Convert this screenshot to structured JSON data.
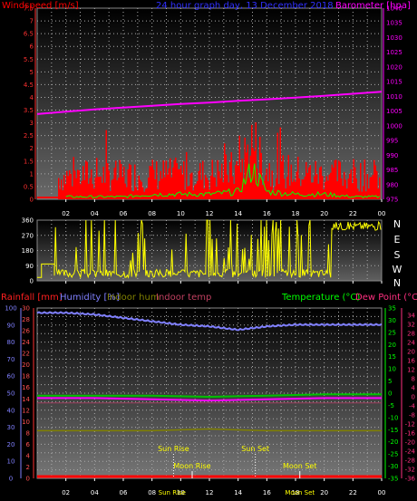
{
  "chart_data": [
    {
      "type": "bar",
      "panel": "wind-barometer",
      "title": "24 hour graph day, 13 December 2018",
      "ylabel_left": "Windspeed [m/s]",
      "ylabel_right": "Barometer [hpa]",
      "ylim_left": [
        0,
        7.5
      ],
      "yticks_left": [
        "0",
        "0.5",
        "1",
        "1.5",
        "2",
        "2.5",
        "3",
        "3.5",
        "4",
        "4.5",
        "5",
        "5.5",
        "6",
        "6.5",
        "7",
        "7.5"
      ],
      "ylim_right": [
        975,
        1040
      ],
      "yticks_right": [
        "975",
        "980",
        "985",
        "990",
        "995",
        "1000",
        "1005",
        "1010",
        "1015",
        "1020",
        "1025",
        "1030",
        "1035",
        "1040"
      ],
      "xticks": [
        "02",
        "04",
        "06",
        "08",
        "10",
        "12",
        "14",
        "16",
        "18",
        "20",
        "22",
        "00"
      ],
      "barometer_series": {
        "name": "Barometer",
        "hours": [
          0,
          2,
          4,
          6,
          8,
          10,
          12,
          14,
          16,
          18,
          20,
          22,
          24
        ],
        "values": [
          1004,
          1004.8,
          1005.6,
          1006.2,
          1006.8,
          1007.4,
          1007.9,
          1008.5,
          1009.0,
          1009.6,
          1010.2,
          1010.9,
          1011.6
        ]
      },
      "wind_series": {
        "name": "Windspeed",
        "hours": [
          2,
          4,
          6,
          8,
          10,
          12,
          14,
          15,
          16,
          18,
          20,
          22,
          24
        ],
        "values": [
          1.4,
          1.5,
          1.4,
          1.5,
          1.5,
          1.5,
          1.8,
          3.4,
          1.8,
          1.6,
          1.5,
          1.5,
          1.3
        ]
      },
      "gust_series": {
        "name": "Gust",
        "hours": [
          2,
          4,
          6,
          8,
          10,
          12,
          14,
          15,
          16,
          18,
          20,
          22,
          24
        ],
        "values": [
          0.1,
          0.1,
          0.1,
          0.2,
          0.2,
          0.2,
          0.3,
          1.2,
          0.3,
          0.2,
          0.2,
          0.1,
          0.1
        ]
      }
    },
    {
      "type": "line",
      "panel": "wind-direction",
      "ylim": [
        0,
        360
      ],
      "yticks": [
        "0",
        "90",
        "180",
        "270",
        "360"
      ],
      "compass": [
        "N",
        "W",
        "S",
        "E",
        "N"
      ],
      "xticks": [
        "02",
        "04",
        "06",
        "08",
        "10",
        "12",
        "14",
        "16",
        "18",
        "20",
        "22",
        "00"
      ]
    },
    {
      "type": "line",
      "panel": "temperature-humidity",
      "labels": {
        "rainfall": "Rainfall [mm]",
        "humidity": "Humidity [%]",
        "indoor_hum": "Indoor hum",
        "indoor_temp": "Indoor temp",
        "temperature": "Temperature (°C)",
        "dew_point": "Dew Point (°C)"
      },
      "ylim_humidity": [
        0,
        100
      ],
      "yticks_humidity": [
        "0",
        "5",
        "10",
        "15",
        "20",
        "25",
        "30",
        "35",
        "40",
        "45",
        "50",
        "55",
        "60",
        "65",
        "70",
        "75",
        "80",
        "85",
        "90",
        "95",
        "100"
      ],
      "yticks_rain": [
        "0",
        "2",
        "4",
        "6",
        "8",
        "10",
        "12",
        "14",
        "16",
        "18",
        "20",
        "22",
        "24",
        "26",
        "28",
        "30"
      ],
      "ylim_temperature": [
        -35,
        35
      ],
      "yticks_temperature": [
        "35",
        "30",
        "25",
        "20",
        "15",
        "10",
        "5",
        "0",
        "-5",
        "-10",
        "-15",
        "-20",
        "-25",
        "-30",
        "-35"
      ],
      "yticks_dewpoint": [
        "34",
        "32",
        "28",
        "24",
        "20",
        "16",
        "12",
        "8",
        "4",
        "0",
        "-4",
        "-8",
        "-12",
        "-16",
        "-20",
        "-24",
        "-28",
        "-32",
        "-36"
      ],
      "xticks": [
        "02",
        "04",
        "06",
        "08",
        "10",
        "12",
        "14",
        "16",
        "18",
        "20",
        "22",
        "00"
      ],
      "humidity_series": {
        "name": "Humidity",
        "hours": [
          0,
          2,
          4,
          6,
          8,
          10,
          12,
          14,
          16,
          18,
          20,
          22,
          24
        ],
        "values": [
          97,
          97,
          96,
          94,
          92,
          90,
          89,
          87,
          89,
          90,
          90,
          90,
          90
        ]
      },
      "temperature_series": {
        "name": "Temperature",
        "hours": [
          0,
          4,
          8,
          12,
          16,
          20,
          24
        ],
        "values": [
          -1,
          -1,
          -1,
          -1.5,
          -1,
          -0.5,
          -0.5
        ]
      },
      "dewpoint_series": {
        "name": "Dew Point",
        "hours": [
          0,
          4,
          8,
          12,
          16,
          20,
          24
        ],
        "values": [
          -2,
          -2,
          -2.5,
          -3,
          -2.5,
          -2,
          -2
        ]
      },
      "indoor_hum_series": {
        "name": "Indoor hum",
        "hours": [
          0,
          4,
          8,
          12,
          16,
          20,
          24
        ],
        "values": [
          28,
          28,
          28,
          29,
          28,
          28,
          28
        ]
      },
      "rainfall_series": {
        "name": "Rainfall",
        "hours": [
          0,
          24
        ],
        "values": [
          0,
          0
        ]
      },
      "annotations": [
        {
          "label": "Sun Rise",
          "hour": 9.5
        },
        {
          "label": "Sun Set",
          "hour": 15.2
        },
        {
          "label": "Moon Rise",
          "hour": 10.8
        },
        {
          "label": "Moon Set",
          "hour": 18.3
        }
      ],
      "bottom_labels": [
        {
          "label": "Sun Rise",
          "hour": 9.4
        },
        {
          "label": "Moon Set",
          "hour": 18.3
        }
      ]
    }
  ]
}
